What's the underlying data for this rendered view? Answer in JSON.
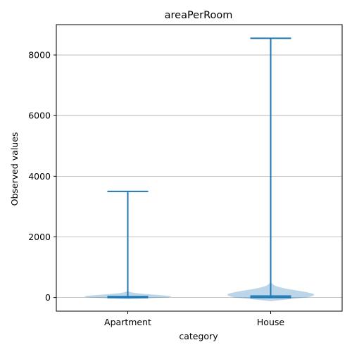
{
  "chart_data": {
    "type": "violin",
    "title": "areaPerRoom",
    "xlabel": "category",
    "ylabel": "Observed values",
    "categories": [
      "Apartment",
      "House"
    ],
    "ylim": [
      -450,
      9000
    ],
    "yticks": [
      0,
      2000,
      4000,
      6000,
      8000
    ],
    "grid": "horizontal",
    "colors": {
      "line": "#1f77b4",
      "body": "#1f77b4"
    },
    "violins": [
      {
        "category": "Apartment",
        "min": 0,
        "max": 3500,
        "median": 30,
        "peak_density": 0.45,
        "peak_at": 30,
        "spread": 90
      },
      {
        "category": "House",
        "min": 0,
        "max": 8550,
        "median": 50,
        "peak_density": 0.45,
        "peak_at": 90,
        "spread": 200
      }
    ]
  }
}
